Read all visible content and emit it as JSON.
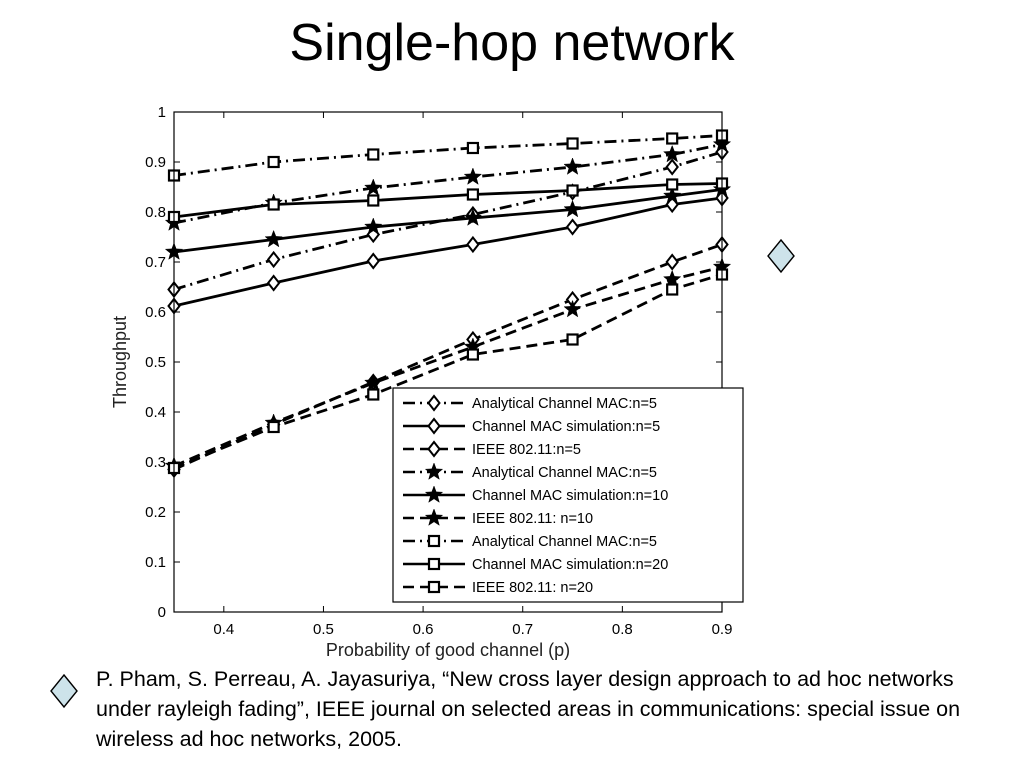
{
  "slide": {
    "title": "Single-hop network",
    "citation": "P. Pham, S. Perreau, A. Jayasuriya, “New cross layer design approach to ad hoc networks under rayleigh fading”, IEEE journal on selected areas in communications: special issue on wireless ad hoc networks, 2005.",
    "bullet_icon": "diamond-bullet-icon",
    "bullet_color": "#cde3ea"
  },
  "chart_data": {
    "type": "line",
    "xlabel": "Probability of good channel (p)",
    "ylabel": "Throughput",
    "xlim": [
      0.35,
      0.9
    ],
    "ylim": [
      0,
      1
    ],
    "xticks": [
      0.4,
      0.5,
      0.6,
      0.7,
      0.8,
      0.9
    ],
    "xtick_labels": [
      "0.4",
      "0.5",
      "0.6",
      "0.7",
      "0.8",
      "0.9"
    ],
    "yticks": [
      0,
      0.1,
      0.2,
      0.3,
      0.4,
      0.5,
      0.6,
      0.7,
      0.8,
      0.9,
      1
    ],
    "ytick_labels": [
      "0",
      "0.1",
      "0.2",
      "0.3",
      "0.4",
      "0.5",
      "0.6",
      "0.7",
      "0.8",
      "0.9",
      "1"
    ],
    "grid": false,
    "legend_position": "lower-right",
    "x": [
      0.35,
      0.45,
      0.55,
      0.65,
      0.75,
      0.85,
      0.9
    ],
    "series": [
      {
        "name": "Analytical Channel MAC:n=5",
        "marker": "diamond",
        "line": "dashdot",
        "values": [
          0.645,
          0.705,
          0.755,
          0.795,
          0.84,
          0.89,
          0.92
        ]
      },
      {
        "name": "Channel MAC simulation:n=5",
        "marker": "diamond",
        "line": "solid",
        "values": [
          0.612,
          0.658,
          0.702,
          0.735,
          0.77,
          0.815,
          0.828
        ]
      },
      {
        "name": "IEEE 802.11:n=5",
        "marker": "diamond",
        "line": "dashed",
        "values": [
          0.285,
          0.375,
          0.46,
          0.545,
          0.625,
          0.7,
          0.735
        ]
      },
      {
        "name": "Analytical Channel MAC:n=5",
        "marker": "star",
        "line": "dashdot",
        "values": [
          0.778,
          0.818,
          0.848,
          0.87,
          0.89,
          0.915,
          0.935
        ]
      },
      {
        "name": "Channel MAC simulation:n=10",
        "marker": "star",
        "line": "solid",
        "values": [
          0.72,
          0.745,
          0.77,
          0.788,
          0.805,
          0.832,
          0.845
        ]
      },
      {
        "name": "IEEE 802.11: n=10",
        "marker": "star",
        "line": "dashed",
        "values": [
          0.292,
          0.378,
          0.458,
          0.53,
          0.605,
          0.665,
          0.69
        ]
      },
      {
        "name": "Analytical Channel MAC:n=5",
        "marker": "square",
        "line": "dashdot",
        "values": [
          0.873,
          0.9,
          0.915,
          0.928,
          0.937,
          0.947,
          0.953
        ]
      },
      {
        "name": "Channel MAC simulation:n=20",
        "marker": "square",
        "line": "solid",
        "values": [
          0.79,
          0.815,
          0.823,
          0.835,
          0.843,
          0.855,
          0.857
        ]
      },
      {
        "name": "IEEE 802.11: n=20",
        "marker": "square",
        "line": "dashed",
        "values": [
          0.288,
          0.37,
          0.435,
          0.515,
          0.545,
          0.645,
          0.675
        ]
      }
    ]
  }
}
